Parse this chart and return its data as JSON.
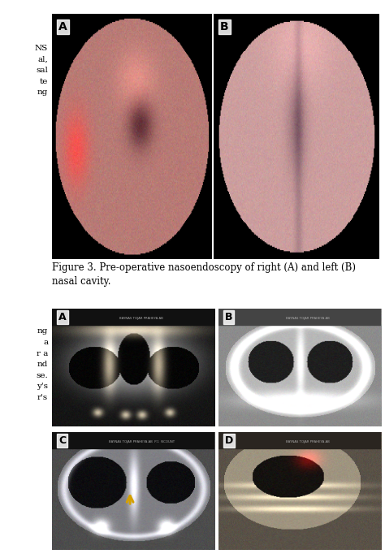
{
  "bg_color": "#ffffff",
  "fig_caption": "Figure 3. Pre-operative nasoendoscopy of right (A) and left (B)\nnasal cavity.",
  "caption_fontsize": 8.5,
  "left_text_top": "NS\nal,\nsal\nte\nng",
  "left_text_bottom": "ng\na\nr a\nnd\nse.\ny's\nr's",
  "arrow_color": "#d4a000",
  "label_bg": "#ffffff",
  "label_color": "#000000"
}
